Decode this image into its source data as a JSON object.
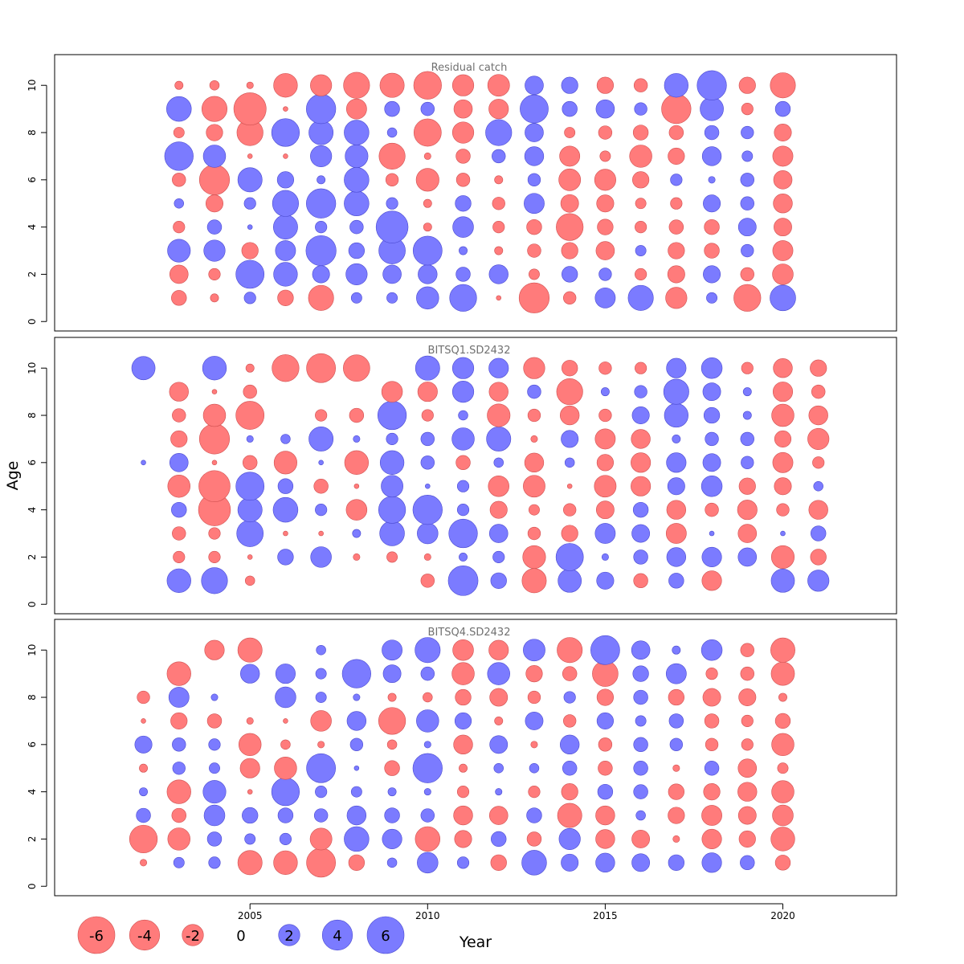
{
  "chart_data": {
    "type": "scatter",
    "xlabel": "Year",
    "ylabel": "Age",
    "x_ticks": [
      "2005",
      "2010",
      "2015",
      "2020"
    ],
    "y_ticks": [
      "0",
      "2",
      "4",
      "6",
      "8",
      "10"
    ],
    "x_range": [
      1999.5,
      2023.2
    ],
    "y_range": [
      -0.4,
      11.3
    ],
    "colors": {
      "positive": "#7b7bff",
      "negative": "#ff7b7b",
      "positive_edge": "#4a4ad0",
      "negative_edge": "#d05050"
    },
    "legend": {
      "entries": [
        {
          "label": "-6",
          "value": -6
        },
        {
          "label": "-4",
          "value": -4
        },
        {
          "label": "-2",
          "value": -2
        },
        {
          "label": "0",
          "value": 0
        },
        {
          "label": "2",
          "value": 2
        },
        {
          "label": "4",
          "value": 4
        },
        {
          "label": "6",
          "value": 6
        }
      ]
    },
    "panels": [
      {
        "title": "Residual catch",
        "years": [
          2003,
          2004,
          2005,
          2006,
          2007,
          2008,
          2009,
          2010,
          2011,
          2012,
          2013,
          2014,
          2015,
          2016,
          2017,
          2018,
          2019,
          2020
        ],
        "ages": [
          1,
          2,
          3,
          4,
          5,
          6,
          7,
          8,
          9,
          10
        ],
        "residuals": [
          [
            -1.0,
            -0.3,
            0.6,
            -1.1,
            -2.8,
            0.5,
            0.5,
            2.2,
            3.2,
            -0.1,
            -4.0,
            -0.7,
            1.8,
            2.8,
            -2.0,
            0.5,
            -3.2,
            2.9
          ],
          [
            -1.5,
            -0.6,
            3.5,
            2.5,
            1.3,
            2.0,
            1.5,
            1.6,
            0.9,
            1.6,
            -0.5,
            1.1,
            0.7,
            -0.6,
            -1.3,
            1.3,
            -0.8,
            -1.9
          ],
          [
            2.3,
            2.0,
            -1.2,
            1.8,
            4.0,
            1.1,
            3.1,
            3.7,
            0.3,
            -0.3,
            -0.8,
            -1.2,
            -1.5,
            0.5,
            -1.2,
            -1.0,
            0.7,
            -1.8
          ],
          [
            -0.6,
            0.9,
            0.1,
            2.6,
            0.6,
            0.8,
            4.5,
            -0.3,
            1.9,
            -0.6,
            -1.0,
            -3.2,
            -1.1,
            -0.6,
            -0.9,
            -1.0,
            1.4,
            -1.4
          ],
          [
            0.4,
            -1.3,
            0.6,
            3.0,
            3.8,
            2.7,
            0.6,
            -0.3,
            1.1,
            -0.7,
            1.8,
            -1.4,
            -1.3,
            -0.5,
            -0.6,
            1.3,
            0.8,
            -1.6
          ],
          [
            -0.8,
            -4.0,
            2.6,
            1.2,
            0.3,
            2.7,
            -0.7,
            -2.3,
            -0.8,
            -0.3,
            0.7,
            -2.1,
            -2.0,
            -1.2,
            0.6,
            0.2,
            0.8,
            -1.5
          ],
          [
            3.6,
            2.2,
            -0.1,
            -0.1,
            2.0,
            2.3,
            -3.0,
            -0.2,
            -0.9,
            0.8,
            1.6,
            -1.8,
            -0.5,
            -2.2,
            -1.2,
            1.6,
            0.5,
            -1.8
          ],
          [
            -0.5,
            -1.2,
            -3.0,
            3.4,
            2.6,
            2.7,
            0.4,
            -3.3,
            -2.0,
            3.0,
            1.5,
            -0.5,
            -0.8,
            -1.0,
            -0.9,
            0.9,
            0.7,
            -1.3
          ],
          [
            2.7,
            -2.8,
            -4.6,
            -0.1,
            3.8,
            -1.8,
            1.0,
            0.8,
            -1.5,
            -1.7,
            3.5,
            1.0,
            1.5,
            0.7,
            -3.8,
            2.4,
            -0.6,
            1.0
          ],
          [
            -0.3,
            -0.4,
            -0.2,
            -2.5,
            -2.0,
            -3.0,
            -2.6,
            -3.4,
            -2.0,
            -2.1,
            1.5,
            1.2,
            -1.2,
            -0.8,
            2.5,
            3.8,
            -1.2,
            -2.8
          ]
        ]
      },
      {
        "title": "BITSQ1.SD2432",
        "years": [
          2002,
          2003,
          2004,
          2005,
          2006,
          2007,
          2008,
          2009,
          2010,
          2011,
          2012,
          2013,
          2014,
          2015,
          2016,
          2017,
          2018,
          2019,
          2020,
          2021
        ],
        "ages": [
          1,
          2,
          3,
          4,
          5,
          6,
          7,
          8,
          9,
          10
        ],
        "residuals": [
          [
            null,
            2.5,
            3.0,
            -0.4,
            null,
            null,
            null,
            null,
            -0.8,
            3.9,
            1.1,
            -2.6,
            2.4,
            1.3,
            -0.9,
            1.0,
            -1.7,
            null,
            2.4,
            2.0
          ],
          [
            null,
            -0.6,
            -0.6,
            -0.1,
            1.1,
            1.9,
            -0.2,
            -0.5,
            -0.2,
            0.3,
            0.6,
            -2.3,
            3.3,
            0.2,
            0.9,
            1.6,
            1.7,
            1.5,
            -2.3,
            -1.1
          ],
          [
            null,
            -0.8,
            -0.6,
            3.1,
            -0.1,
            -0.1,
            0.3,
            2.7,
            1.9,
            3.6,
            1.5,
            -0.7,
            -1.2,
            1.8,
            1.4,
            -1.8,
            0.1,
            -1.5,
            0.1,
            1.0
          ],
          [
            null,
            1.0,
            -4.5,
            2.6,
            2.7,
            0.6,
            -1.9,
            3.2,
            3.8,
            0.6,
            -1.3,
            -0.5,
            -0.7,
            -1.4,
            1.0,
            -1.6,
            -0.8,
            -1.7,
            -0.7,
            -1.6
          ],
          [
            null,
            -2.2,
            -4.3,
            3.5,
            1.0,
            -0.9,
            -0.1,
            2.1,
            0.1,
            0.6,
            -1.9,
            -2.1,
            -0.1,
            -2.1,
            -1.7,
            1.3,
            1.9,
            -1.2,
            -1.3,
            0.4
          ],
          [
            0.1,
            1.5,
            -0.1,
            -0.9,
            -2.3,
            0.1,
            -2.5,
            2.5,
            0.8,
            -0.9,
            0.4,
            -1.6,
            0.4,
            -1.2,
            -1.7,
            1.7,
            1.4,
            0.7,
            -1.8,
            -0.6
          ],
          [
            null,
            -1.2,
            -4.0,
            0.2,
            0.4,
            2.6,
            0.2,
            0.6,
            0.8,
            2.2,
            2.6,
            -0.2,
            1.3,
            -1.8,
            -1.6,
            0.3,
            0.8,
            0.8,
            -1.2,
            -2.0
          ],
          [
            null,
            -0.8,
            -2.2,
            -3.5,
            null,
            -0.6,
            -0.9,
            3.6,
            -0.6,
            0.4,
            -2.3,
            -0.7,
            -1.6,
            -0.7,
            1.3,
            2.5,
            1.1,
            0.3,
            -2.2,
            -1.6
          ],
          [
            null,
            -1.6,
            -0.1,
            -0.8,
            null,
            null,
            null,
            -1.9,
            -1.7,
            2.0,
            -1.6,
            0.8,
            -3.0,
            0.3,
            0.7,
            2.8,
            1.4,
            0.3,
            -1.7,
            -0.8
          ],
          [
            2.4,
            null,
            2.5,
            -0.3,
            -3.2,
            -3.7,
            -3.1,
            null,
            2.6,
            2.0,
            1.7,
            -2.0,
            -1.1,
            -0.7,
            -0.6,
            1.7,
            1.9,
            -0.6,
            -1.6,
            -1.2
          ]
        ]
      },
      {
        "title": "BITSQ4.SD2432",
        "years": [
          2002,
          2003,
          2004,
          2005,
          2006,
          2007,
          2008,
          2009,
          2010,
          2011,
          2012,
          2013,
          2014,
          2015,
          2016,
          2017,
          2018,
          2019,
          2020
        ],
        "ages": [
          1,
          2,
          3,
          4,
          5,
          6,
          7,
          8,
          9,
          10
        ],
        "residuals": [
          [
            -0.2,
            0.5,
            0.6,
            -2.6,
            -2.5,
            -3.7,
            -1.1,
            0.4,
            1.9,
            0.6,
            -1.1,
            2.7,
            1.3,
            1.6,
            1.4,
            1.1,
            1.7,
            0.9,
            -1.0
          ],
          [
            -3.4,
            -2.2,
            0.9,
            0.5,
            0.6,
            -2.1,
            2.7,
            1.7,
            -2.7,
            -1.3,
            1.0,
            -0.9,
            2.0,
            -1.6,
            -1.4,
            -0.2,
            -1.7,
            -1.2,
            -2.5
          ],
          [
            0.9,
            -0.9,
            1.9,
            1.1,
            1.0,
            0.8,
            1.6,
            1.0,
            0.8,
            -1.6,
            -1.5,
            1.0,
            -2.6,
            -1.6,
            0.4,
            -1.2,
            -1.8,
            -1.4,
            -1.9
          ],
          [
            0.3,
            -2.5,
            2.3,
            -0.1,
            3.4,
            0.6,
            0.5,
            0.3,
            0.2,
            -0.6,
            0.2,
            -0.6,
            -1.2,
            1.0,
            0.9,
            -1.1,
            -1.2,
            -1.6,
            -2.2
          ],
          [
            -0.3,
            0.7,
            0.5,
            -1.7,
            -2.2,
            3.7,
            0.1,
            -1.0,
            3.8,
            -0.3,
            0.4,
            0.4,
            0.9,
            -0.9,
            0.9,
            -0.2,
            0.9,
            -1.5,
            -0.5
          ],
          [
            1.3,
            0.8,
            0.6,
            -2.2,
            -0.4,
            -0.2,
            0.7,
            -0.4,
            0.2,
            -1.6,
            1.4,
            -0.2,
            1.6,
            -0.8,
            0.9,
            0.7,
            -0.7,
            -0.6,
            -2.2
          ],
          [
            -0.1,
            -1.2,
            -0.9,
            -0.2,
            -0.1,
            -1.9,
            1.6,
            -3.2,
            2.2,
            1.2,
            -0.3,
            1.4,
            -0.7,
            1.2,
            0.5,
            0.9,
            -0.9,
            -0.6,
            -1.0
          ],
          [
            -0.7,
            1.8,
            0.2,
            null,
            1.9,
            0.5,
            0.2,
            -0.3,
            -0.4,
            -1.1,
            -1.4,
            -0.7,
            0.6,
            -1.2,
            0.9,
            -1.1,
            -1.4,
            -1.3,
            -0.3
          ],
          [
            null,
            -2.5,
            null,
            1.6,
            1.7,
            0.5,
            3.6,
            1.4,
            0.8,
            -2.2,
            2.2,
            -1.2,
            -0.9,
            -2.9,
            1.1,
            1.8,
            -0.6,
            -0.8,
            -2.4
          ],
          [
            null,
            null,
            -1.7,
            -2.6,
            null,
            0.4,
            null,
            1.8,
            2.8,
            -1.9,
            -1.7,
            2.1,
            -2.8,
            3.7,
            1.5,
            0.3,
            1.9,
            -0.8,
            -2.6
          ]
        ]
      }
    ]
  }
}
